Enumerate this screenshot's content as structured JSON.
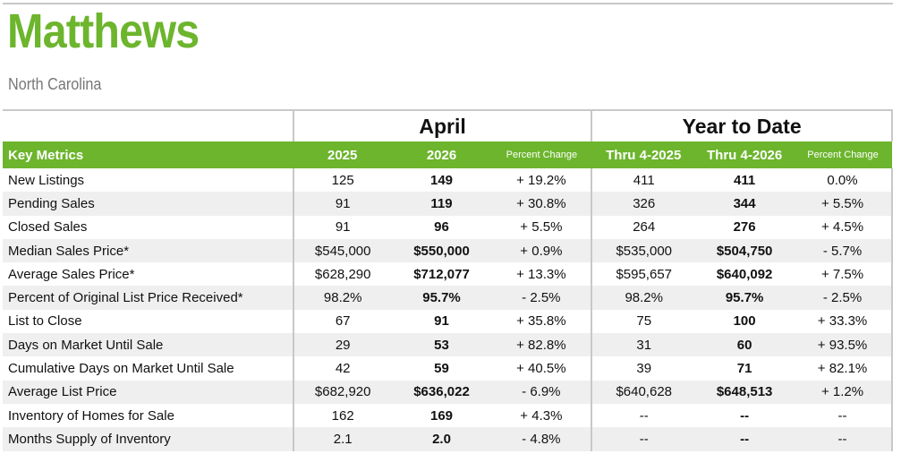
{
  "header": {
    "title": "Matthews",
    "subtitle": "North Carolina"
  },
  "table": {
    "groups": [
      "April",
      "Year to Date"
    ],
    "columns": [
      "Key Metrics",
      "2025",
      "2026",
      "Percent Change",
      "Thru 4-2025",
      "Thru 4-2026",
      "Percent Change"
    ],
    "rows": [
      [
        "New Listings",
        "125",
        "149",
        "+ 19.2%",
        "411",
        "411",
        "0.0%"
      ],
      [
        "Pending Sales",
        "91",
        "119",
        "+ 30.8%",
        "326",
        "344",
        "+ 5.5%"
      ],
      [
        "Closed Sales",
        "91",
        "96",
        "+ 5.5%",
        "264",
        "276",
        "+ 4.5%"
      ],
      [
        "Median Sales Price*",
        "$545,000",
        "$550,000",
        "+ 0.9%",
        "$535,000",
        "$504,750",
        "- 5.7%"
      ],
      [
        "Average Sales Price*",
        "$628,290",
        "$712,077",
        "+ 13.3%",
        "$595,657",
        "$640,092",
        "+ 7.5%"
      ],
      [
        "Percent of Original List Price Received*",
        "98.2%",
        "95.7%",
        "- 2.5%",
        "98.2%",
        "95.7%",
        "- 2.5%"
      ],
      [
        "List to Close",
        "67",
        "91",
        "+ 35.8%",
        "75",
        "100",
        "+ 33.3%"
      ],
      [
        "Days on Market Until Sale",
        "29",
        "53",
        "+ 82.8%",
        "31",
        "60",
        "+ 93.5%"
      ],
      [
        "Cumulative Days on Market Until Sale",
        "42",
        "59",
        "+ 40.5%",
        "39",
        "71",
        "+ 82.1%"
      ],
      [
        "Average List Price",
        "$682,920",
        "$636,022",
        "- 6.9%",
        "$640,628",
        "$648,513",
        "+ 1.2%"
      ],
      [
        "Inventory of Homes for Sale",
        "162",
        "169",
        "+ 4.3%",
        "--",
        "--",
        "--"
      ],
      [
        "Months Supply of Inventory",
        "2.1",
        "2.0",
        "- 4.8%",
        "--",
        "--",
        "--"
      ]
    ]
  }
}
